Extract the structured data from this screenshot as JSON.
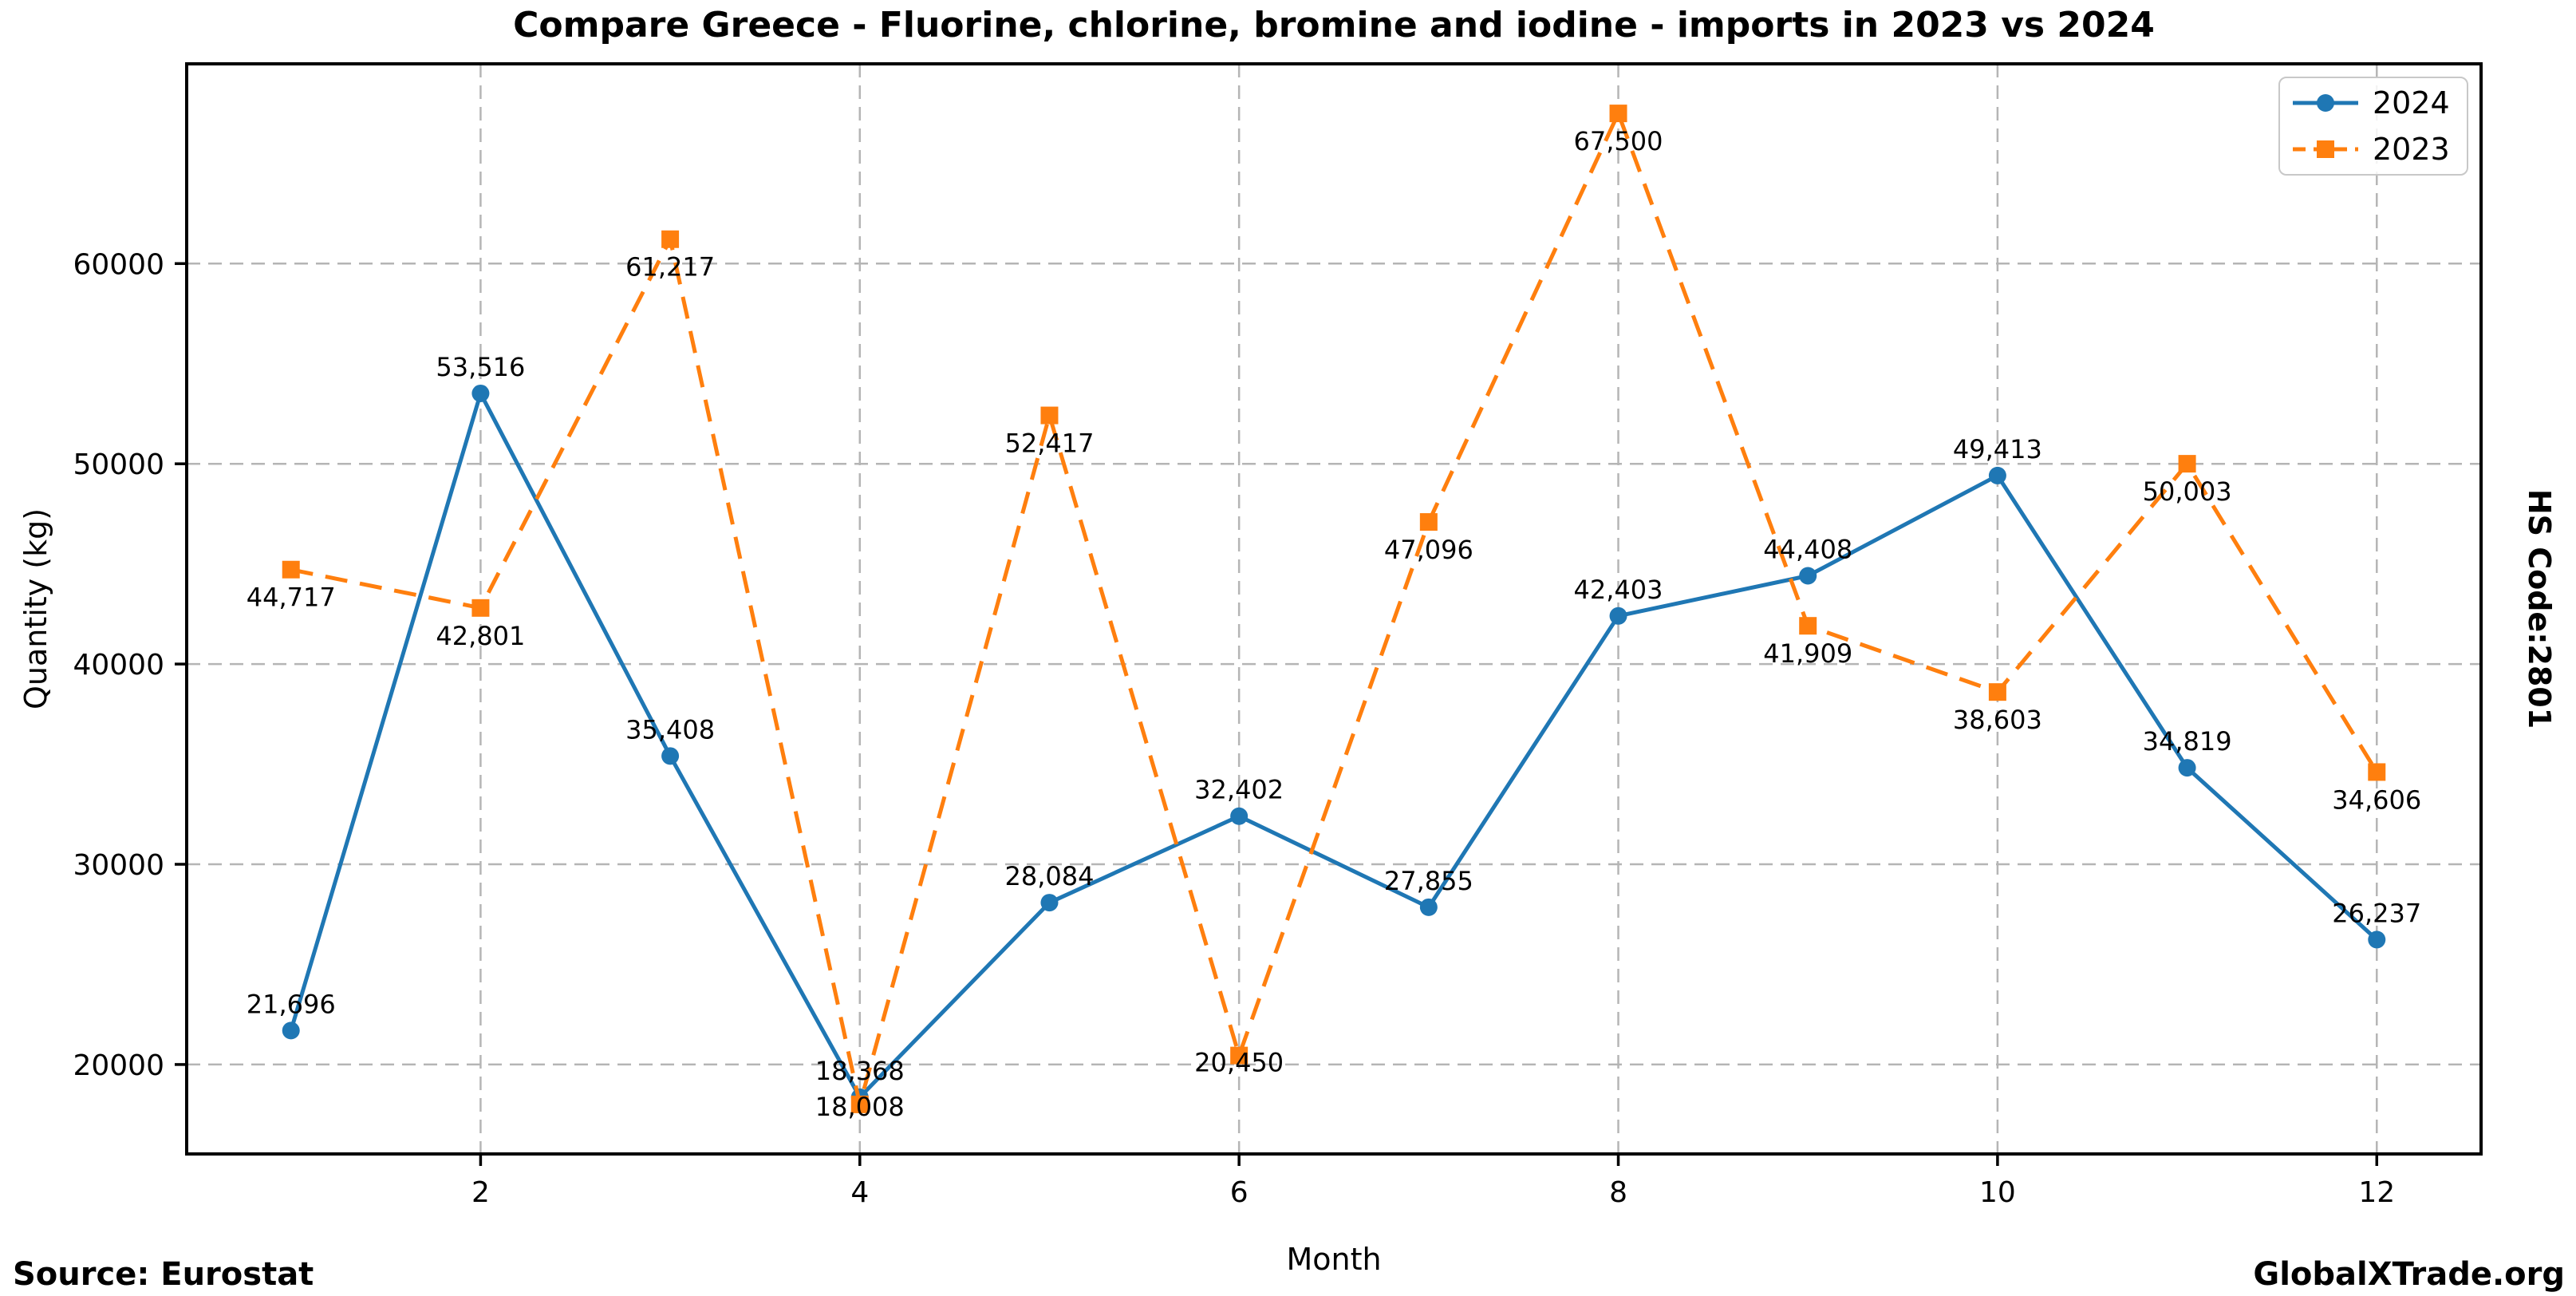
{
  "title": "Compare Greece - Fluorine, chlorine, bromine and iodine - imports in 2023 vs 2024",
  "right_label": "HS Code:2801",
  "footer": {
    "source": "Source: Eurostat",
    "brand": "GlobalXTrade.org"
  },
  "colors": {
    "series_2024": "#1f77b4",
    "series_2023": "#ff7f0e",
    "grid": "#b5b5b5",
    "axis": "#000000",
    "legend_border": "#c8c8c8"
  },
  "chart_data": {
    "type": "line",
    "title": "Compare Greece - Fluorine, chlorine, bromine and iodine - imports in 2023 vs 2024",
    "xlabel": "Month",
    "ylabel": "Quantity (kg)",
    "x": [
      1,
      2,
      3,
      4,
      5,
      6,
      7,
      8,
      9,
      10,
      11,
      12
    ],
    "x_ticks": [
      2,
      4,
      6,
      8,
      10,
      12
    ],
    "y_ticks": [
      20000,
      30000,
      40000,
      50000,
      60000
    ],
    "xlim": [
      0.45,
      12.55
    ],
    "ylim": [
      15533,
      69975
    ],
    "grid": true,
    "legend_position": "upper right",
    "series": [
      {
        "name": "2024",
        "color": "#1f77b4",
        "line_style": "solid",
        "marker": "circle",
        "label_side": "above",
        "values": [
          21696,
          53516,
          35408,
          18368,
          28084,
          32402,
          27855,
          42403,
          44408,
          49413,
          34819,
          26237
        ]
      },
      {
        "name": "2023",
        "color": "#ff7f0e",
        "line_style": "dashed",
        "marker": "square",
        "label_side": "below",
        "values": [
          44717,
          42801,
          61217,
          18008,
          52417,
          20450,
          47096,
          67500,
          41909,
          38603,
          50003,
          34606
        ]
      }
    ]
  }
}
